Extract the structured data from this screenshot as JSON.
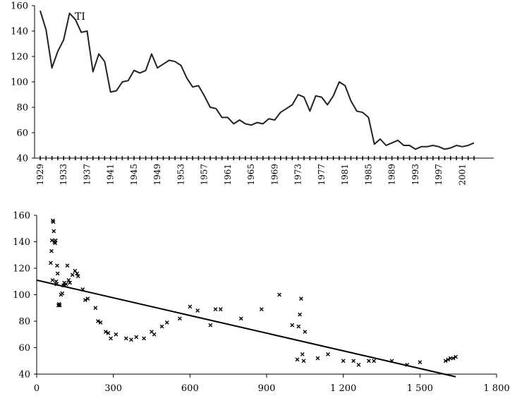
{
  "chart_data": [
    {
      "type": "line",
      "title": "",
      "annotation": "TI",
      "xlabel": "",
      "ylabel": "",
      "ylim": [
        40,
        160
      ],
      "y_ticks": [
        40,
        60,
        80,
        100,
        120,
        140,
        160
      ],
      "x_tick_labels": [
        "1929",
        "1933",
        "1937",
        "1941",
        "1945",
        "1949",
        "1953",
        "1957",
        "1961",
        "1965",
        "1969",
        "1973",
        "1977",
        "1981",
        "1985",
        "1989",
        "1993",
        "1997",
        "2001"
      ],
      "grid": false,
      "series": [
        {
          "x": [
            1929,
            1930,
            1931,
            1932,
            1933,
            1934,
            1935,
            1936,
            1937,
            1938,
            1939,
            1940,
            1941,
            1942,
            1943,
            1944,
            1945,
            1946,
            1947,
            1948,
            1949,
            1950,
            1951,
            1952,
            1953,
            1954,
            1955,
            1956,
            1957,
            1958,
            1959,
            1960,
            1961,
            1962,
            1963,
            1964,
            1965,
            1966,
            1967,
            1968,
            1969,
            1970,
            1971,
            1972,
            1973,
            1974,
            1975,
            1976,
            1977,
            1978,
            1979,
            1980,
            1981,
            1982,
            1983,
            1984,
            1985,
            1986,
            1987,
            1988,
            1989,
            1990,
            1991,
            1992,
            1993,
            1994,
            1995,
            1996,
            1997,
            1998,
            1999,
            2000,
            2001,
            2002,
            2003
          ],
          "values": [
            156,
            141,
            111,
            124,
            133,
            154,
            149,
            139,
            140,
            108,
            122,
            116,
            92,
            93,
            100,
            101,
            109,
            107,
            109,
            122,
            111,
            114,
            117,
            116,
            113,
            103,
            96,
            97,
            89,
            80,
            79,
            72,
            72,
            67,
            70,
            67,
            66,
            68,
            67,
            71,
            70,
            76,
            79,
            82,
            90,
            88,
            77,
            89,
            88,
            82,
            89,
            100,
            97,
            85,
            77,
            76,
            72,
            51,
            55,
            50,
            52,
            54,
            50,
            50,
            47,
            49,
            49,
            50,
            49,
            47,
            48,
            50,
            49,
            50,
            52
          ]
        }
      ]
    },
    {
      "type": "scatter",
      "title": "",
      "xlabel": "",
      "ylabel": "",
      "xlim": [
        0,
        1800
      ],
      "ylim": [
        40,
        160
      ],
      "x_tick_labels": [
        "0",
        "300",
        "600",
        "900",
        "1 200",
        "1 500",
        "1 800"
      ],
      "y_ticks": [
        40,
        60,
        80,
        100,
        120,
        140,
        160
      ],
      "grid": false,
      "marker": "x",
      "points": [
        [
          55,
          124
        ],
        [
          58,
          133
        ],
        [
          60,
          141
        ],
        [
          62,
          111
        ],
        [
          63,
          156
        ],
        [
          65,
          155
        ],
        [
          67,
          148
        ],
        [
          70,
          140
        ],
        [
          72,
          139
        ],
        [
          74,
          141
        ],
        [
          76,
          110
        ],
        [
          78,
          108
        ],
        [
          80,
          122
        ],
        [
          82,
          116
        ],
        [
          85,
          92
        ],
        [
          88,
          93
        ],
        [
          90,
          92
        ],
        [
          95,
          100
        ],
        [
          100,
          101
        ],
        [
          105,
          107
        ],
        [
          108,
          109
        ],
        [
          110,
          107
        ],
        [
          115,
          108
        ],
        [
          120,
          122
        ],
        [
          125,
          111
        ],
        [
          130,
          109
        ],
        [
          140,
          115
        ],
        [
          150,
          118
        ],
        [
          158,
          116
        ],
        [
          162,
          114
        ],
        [
          180,
          104
        ],
        [
          190,
          96
        ],
        [
          200,
          97
        ],
        [
          230,
          90
        ],
        [
          240,
          80
        ],
        [
          250,
          79
        ],
        [
          270,
          72
        ],
        [
          280,
          71
        ],
        [
          290,
          67
        ],
        [
          310,
          70
        ],
        [
          350,
          67
        ],
        [
          370,
          66
        ],
        [
          390,
          68
        ],
        [
          420,
          67
        ],
        [
          450,
          72
        ],
        [
          460,
          70
        ],
        [
          490,
          76
        ],
        [
          510,
          79
        ],
        [
          560,
          82
        ],
        [
          600,
          91
        ],
        [
          630,
          88
        ],
        [
          680,
          77
        ],
        [
          700,
          89
        ],
        [
          720,
          89
        ],
        [
          800,
          82
        ],
        [
          880,
          89
        ],
        [
          950,
          100
        ],
        [
          1000,
          77
        ],
        [
          1020,
          51
        ],
        [
          1025,
          76
        ],
        [
          1030,
          85
        ],
        [
          1035,
          97
        ],
        [
          1040,
          55
        ],
        [
          1045,
          50
        ],
        [
          1050,
          72
        ],
        [
          1100,
          52
        ],
        [
          1140,
          55
        ],
        [
          1200,
          50
        ],
        [
          1240,
          50
        ],
        [
          1260,
          47
        ],
        [
          1300,
          50
        ],
        [
          1320,
          50
        ],
        [
          1390,
          50
        ],
        [
          1450,
          47
        ],
        [
          1500,
          49
        ],
        [
          1600,
          50
        ],
        [
          1610,
          51
        ],
        [
          1620,
          52
        ],
        [
          1630,
          52
        ],
        [
          1640,
          53
        ]
      ],
      "trend_line": {
        "x": [
          0,
          1640
        ],
        "y": [
          111,
          38
        ]
      }
    }
  ]
}
